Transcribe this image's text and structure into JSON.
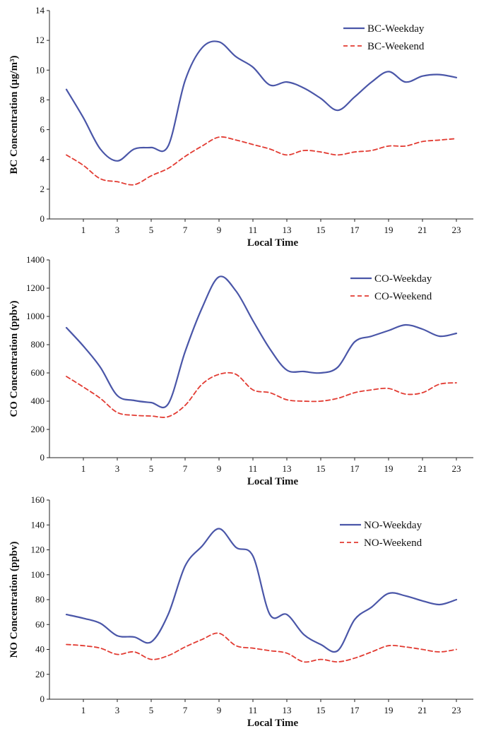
{
  "colors": {
    "weekday": "#4a56a8",
    "weekend": "#e23b32",
    "axis": "#222222"
  },
  "chart_data": [
    {
      "type": "line",
      "xlabel": "Local Time",
      "ylabel": "BC Concentration (µg/m³)",
      "x_ticks": [
        "1",
        "3",
        "5",
        "7",
        "9",
        "11",
        "13",
        "15",
        "17",
        "19",
        "21",
        "23"
      ],
      "y_ticks": [
        "0",
        "2",
        "4",
        "6",
        "8",
        "10",
        "12",
        "14"
      ],
      "xlim": [
        -1,
        24
      ],
      "ylim": [
        0,
        14
      ],
      "legend_position": "top-right",
      "x": [
        0,
        1,
        2,
        3,
        4,
        5,
        6,
        7,
        8,
        9,
        10,
        11,
        12,
        13,
        14,
        15,
        16,
        17,
        18,
        19,
        20,
        21,
        22,
        23
      ],
      "series": [
        {
          "name": "BC-Weekday",
          "style": "solid",
          "values": [
            8.7,
            6.8,
            4.7,
            3.9,
            4.7,
            4.8,
            4.9,
            9.3,
            11.5,
            11.9,
            10.9,
            10.2,
            9.0,
            9.2,
            8.8,
            8.1,
            7.3,
            8.2,
            9.2,
            9.9,
            9.2,
            9.6,
            9.7,
            9.5
          ]
        },
        {
          "name": "BC-Weekend",
          "style": "dashed",
          "values": [
            4.3,
            3.6,
            2.7,
            2.5,
            2.3,
            2.9,
            3.4,
            4.2,
            4.9,
            5.5,
            5.3,
            5.0,
            4.7,
            4.3,
            4.6,
            4.5,
            4.3,
            4.5,
            4.6,
            4.9,
            4.9,
            5.2,
            5.3,
            5.4
          ]
        }
      ]
    },
    {
      "type": "line",
      "xlabel": "Local Time",
      "ylabel": "CO Concentration (ppbv)",
      "x_ticks": [
        "1",
        "3",
        "5",
        "7",
        "9",
        "11",
        "13",
        "15",
        "17",
        "19",
        "21",
        "23"
      ],
      "y_ticks": [
        "0",
        "200",
        "400",
        "600",
        "800",
        "1000",
        "1200",
        "1400"
      ],
      "xlim": [
        -1,
        24
      ],
      "ylim": [
        0,
        1400
      ],
      "legend_position": "top-right",
      "x": [
        0,
        1,
        2,
        3,
        4,
        5,
        6,
        7,
        8,
        9,
        10,
        11,
        12,
        13,
        14,
        15,
        16,
        17,
        18,
        19,
        20,
        21,
        22,
        23
      ],
      "series": [
        {
          "name": "CO-Weekday",
          "style": "solid",
          "values": [
            920,
            790,
            640,
            440,
            405,
            390,
            380,
            750,
            1060,
            1280,
            1180,
            970,
            770,
            620,
            610,
            600,
            640,
            820,
            860,
            900,
            940,
            910,
            860,
            880
          ]
        },
        {
          "name": "CO-Weekend",
          "style": "dashed",
          "values": [
            575,
            500,
            420,
            320,
            300,
            295,
            290,
            370,
            520,
            590,
            590,
            480,
            460,
            410,
            400,
            400,
            420,
            460,
            480,
            490,
            450,
            460,
            520,
            530
          ]
        }
      ]
    },
    {
      "type": "line",
      "xlabel": "Local Time",
      "ylabel": "NO Concentration (ppbv)",
      "x_ticks": [
        "1",
        "3",
        "5",
        "7",
        "9",
        "11",
        "13",
        "15",
        "17",
        "19",
        "21",
        "23"
      ],
      "y_ticks": [
        "0",
        "20",
        "40",
        "60",
        "80",
        "100",
        "120",
        "140",
        "160"
      ],
      "xlim": [
        -1,
        24
      ],
      "ylim": [
        0,
        160
      ],
      "legend_position": "top-right",
      "x": [
        0,
        1,
        2,
        3,
        4,
        5,
        6,
        7,
        8,
        9,
        10,
        11,
        12,
        13,
        14,
        15,
        16,
        17,
        18,
        19,
        20,
        21,
        22,
        23
      ],
      "series": [
        {
          "name": "NO-Weekday",
          "style": "solid",
          "values": [
            68,
            65,
            61,
            51,
            50,
            46,
            68,
            107,
            123,
            137,
            122,
            115,
            68,
            68,
            52,
            44,
            39,
            64,
            74,
            85,
            83,
            79,
            76,
            80
          ]
        },
        {
          "name": "NO-Weekend",
          "style": "dashed",
          "values": [
            44,
            43,
            41,
            36,
            38,
            32,
            35,
            42,
            48,
            53,
            43,
            41,
            39,
            37,
            30,
            32,
            30,
            33,
            38,
            43,
            42,
            40,
            38,
            40
          ]
        }
      ]
    }
  ]
}
